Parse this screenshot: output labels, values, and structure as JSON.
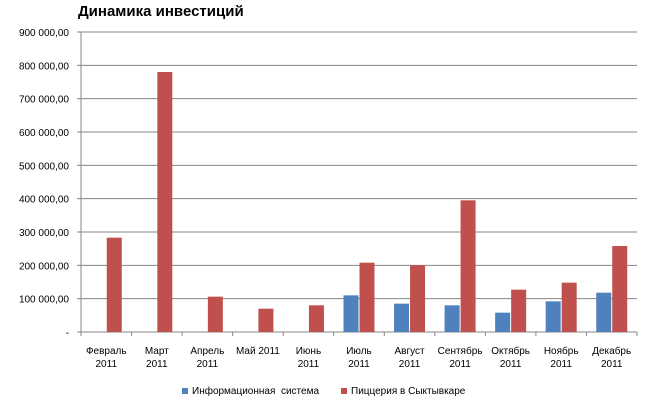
{
  "chart_data": {
    "type": "bar",
    "title": "Динамика инвестиций",
    "categories": [
      [
        "Февраль",
        "2011"
      ],
      [
        "Март",
        "2011"
      ],
      [
        "Апрель",
        "2011"
      ],
      [
        "Май 2011"
      ],
      [
        "Июнь",
        "2011"
      ],
      [
        "Июль",
        "2011"
      ],
      [
        "Август",
        "2011"
      ],
      [
        "Сентябрь",
        "2011"
      ],
      [
        "Октябрь",
        "2011"
      ],
      [
        "Ноябрь",
        "2011"
      ],
      [
        "Декабрь",
        "2011"
      ]
    ],
    "y_tick_labels": [
      "-",
      "100 000,00",
      "200 000,00",
      "300 000,00",
      "400 000,00",
      "500 000,00",
      "600 000,00",
      "700 000,00",
      "800 000,00",
      "900 000,00"
    ],
    "ylim": [
      0,
      900000
    ],
    "grid": true,
    "legend_position": "bottom",
    "series": [
      {
        "name": "Информационная  система",
        "color": "#4f81bd",
        "values": [
          0,
          0,
          0,
          0,
          0,
          110000,
          85000,
          80000,
          58000,
          92000,
          118000
        ]
      },
      {
        "name": "Пиццерия в Сыктывкаре",
        "color": "#c0504d",
        "values": [
          283000,
          780000,
          106000,
          70000,
          80000,
          208000,
          200000,
          395000,
          127000,
          148000,
          258000
        ]
      }
    ]
  }
}
